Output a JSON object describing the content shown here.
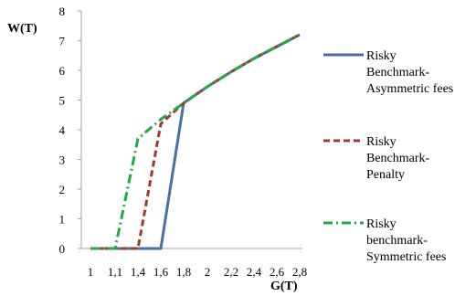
{
  "chart_data": {
    "type": "line",
    "title": "",
    "xlabel": "G(T)",
    "ylabel": "W(T)",
    "ylim": [
      0,
      8
    ],
    "y_ticks": [
      0,
      1,
      2,
      3,
      4,
      5,
      6,
      7,
      8
    ],
    "x_ticks": [
      "1",
      "1,1",
      "1,4",
      "1,6",
      "1,8",
      "2",
      "2,2",
      "2,4",
      "2,6",
      "2,8"
    ],
    "grid": false,
    "legend_position": "right",
    "series": [
      {
        "name": "Risky Benchmark-Asymmetric fees",
        "legend_lines": [
          "Risky",
          "Benchmark-",
          "Asymmetric fees"
        ],
        "color": "#4A6FA5",
        "style": "solid",
        "points": [
          [
            1,
            0
          ],
          [
            1.1,
            0
          ],
          [
            1.4,
            0
          ],
          [
            1.6,
            0
          ],
          [
            1.8,
            4.9
          ],
          [
            2,
            5.45
          ],
          [
            2.2,
            5.95
          ],
          [
            2.4,
            6.4
          ],
          [
            2.6,
            6.8
          ],
          [
            2.8,
            7.2
          ]
        ]
      },
      {
        "name": "Risky Benchmark-Penalty",
        "legend_lines": [
          "Risky",
          "Benchmark-",
          "Penalty"
        ],
        "color": "#A0392E",
        "style": "dashed",
        "points": [
          [
            1,
            0
          ],
          [
            1.1,
            0
          ],
          [
            1.4,
            0
          ],
          [
            1.6,
            4.2
          ],
          [
            1.8,
            4.9
          ],
          [
            2,
            5.45
          ],
          [
            2.2,
            5.95
          ],
          [
            2.4,
            6.4
          ],
          [
            2.6,
            6.8
          ],
          [
            2.8,
            7.2
          ]
        ]
      },
      {
        "name": "Risky benchmark-Symmetric fees",
        "legend_lines": [
          "Risky",
          "benchmark-",
          "Symmetric fees"
        ],
        "color": "#22AA44",
        "style": "dashdot",
        "points": [
          [
            1,
            0
          ],
          [
            1.1,
            0
          ],
          [
            1.4,
            3.7
          ],
          [
            1.6,
            4.35
          ],
          [
            1.8,
            4.9
          ],
          [
            2,
            5.45
          ],
          [
            2.2,
            5.95
          ],
          [
            2.4,
            6.4
          ],
          [
            2.6,
            6.8
          ],
          [
            2.8,
            7.2
          ]
        ]
      }
    ]
  }
}
